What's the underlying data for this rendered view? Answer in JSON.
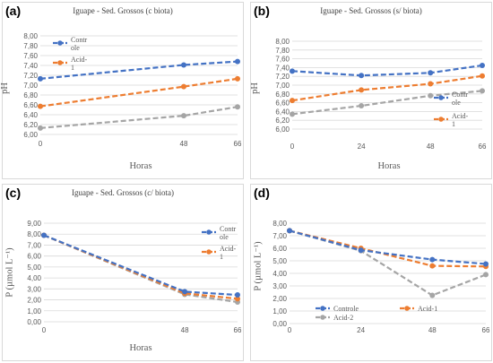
{
  "colors": {
    "Controle": "#4472c4",
    "Acid-1": "#ed7d31",
    "Acid-2": "#a5a5a5",
    "grid": "#d9d9d9",
    "text": "#595959"
  },
  "chart_data": [
    {
      "panel_label": "(a)",
      "type": "line",
      "title": "Iguape - Sed. Grossos (c biota)",
      "xlabel": "Horas",
      "ylabel": "pH",
      "x": [
        0,
        48,
        66
      ],
      "x_ticks": [
        "0",
        "48",
        "66"
      ],
      "ylim": [
        6.0,
        8.0
      ],
      "y_ticks": [
        "6,00",
        "6,20",
        "6,40",
        "6,60",
        "6,80",
        "7,00",
        "7,20",
        "7,40",
        "7,60",
        "7,80",
        "8,00"
      ],
      "grid": true,
      "legend_position": "top-left",
      "series": [
        {
          "name": "Contr ole",
          "key": "Controle",
          "values": [
            7.13,
            7.41,
            7.48
          ]
        },
        {
          "name": "Acid-1",
          "key": "Acid-1",
          "values": [
            6.57,
            6.97,
            7.13
          ]
        },
        {
          "key": "Acid-2",
          "values": [
            6.13,
            6.38,
            6.56
          ]
        }
      ]
    },
    {
      "panel_label": "(b)",
      "type": "line",
      "title": "Iguape - Sed. Grossos (s/ biota)",
      "xlabel": "Horas",
      "ylabel": "pH",
      "x": [
        0,
        24,
        48,
        66
      ],
      "x_ticks": [
        "0",
        "24",
        "48",
        "66"
      ],
      "ylim": [
        6.0,
        8.0
      ],
      "y_ticks": [
        "6,00",
        "6,20",
        "6,40",
        "6,60",
        "6,80",
        "7,00",
        "7,20",
        "7,40",
        "7,60",
        "7,80",
        "8,00"
      ],
      "grid": true,
      "legend_position": "right",
      "series": [
        {
          "name": "Contr ole",
          "key": "Controle",
          "values": [
            7.32,
            7.22,
            7.28,
            7.45
          ]
        },
        {
          "name": "Acid-1",
          "key": "Acid-1",
          "values": [
            6.65,
            6.89,
            7.03,
            7.21
          ]
        },
        {
          "key": "Acid-2",
          "values": [
            6.34,
            6.53,
            6.76,
            6.87
          ]
        }
      ]
    },
    {
      "panel_label": "(c)",
      "type": "line",
      "title": "Iguape - Sed. Grossos (c/ biota)",
      "xlabel": "Horas",
      "ylabel": "P (µmol L⁻¹)",
      "x": [
        0,
        48,
        66
      ],
      "x_ticks": [
        "0",
        "48",
        "66"
      ],
      "ylim": [
        0,
        9
      ],
      "y_ticks": [
        "0,00",
        "1,00",
        "2,00",
        "3,00",
        "4,00",
        "5,00",
        "6,00",
        "7,00",
        "8,00",
        "9,00"
      ],
      "grid": true,
      "legend_position": "right",
      "series": [
        {
          "name": "Contr ole",
          "key": "Controle",
          "values": [
            7.9,
            2.75,
            2.45
          ]
        },
        {
          "name": "Acid-1",
          "key": "Acid-1",
          "values": [
            7.9,
            2.6,
            2.1
          ]
        },
        {
          "key": "Acid-2",
          "values": [
            7.9,
            2.5,
            1.8
          ]
        }
      ]
    },
    {
      "panel_label": "(d)",
      "type": "line",
      "title": "",
      "xlabel": "Horas",
      "ylabel": "P (µmol L⁻¹)",
      "x": [
        0,
        24,
        48,
        66
      ],
      "x_ticks": [
        "0",
        "24",
        "48",
        "66"
      ],
      "ylim": [
        0,
        8
      ],
      "y_ticks": [
        "0,00",
        "1,00",
        "2,00",
        "3,00",
        "4,00",
        "5,00",
        "6,00",
        "7,00",
        "8,00"
      ],
      "grid": true,
      "legend_position": "bottom",
      "series": [
        {
          "name": "Controle",
          "key": "Controle",
          "values": [
            7.4,
            5.85,
            5.1,
            4.75
          ]
        },
        {
          "name": "Acid-1",
          "key": "Acid-1",
          "values": [
            7.4,
            6.0,
            4.6,
            4.55
          ]
        },
        {
          "name": "Acid-2",
          "key": "Acid-2",
          "values": [
            7.4,
            5.8,
            2.25,
            3.9
          ]
        }
      ]
    }
  ]
}
